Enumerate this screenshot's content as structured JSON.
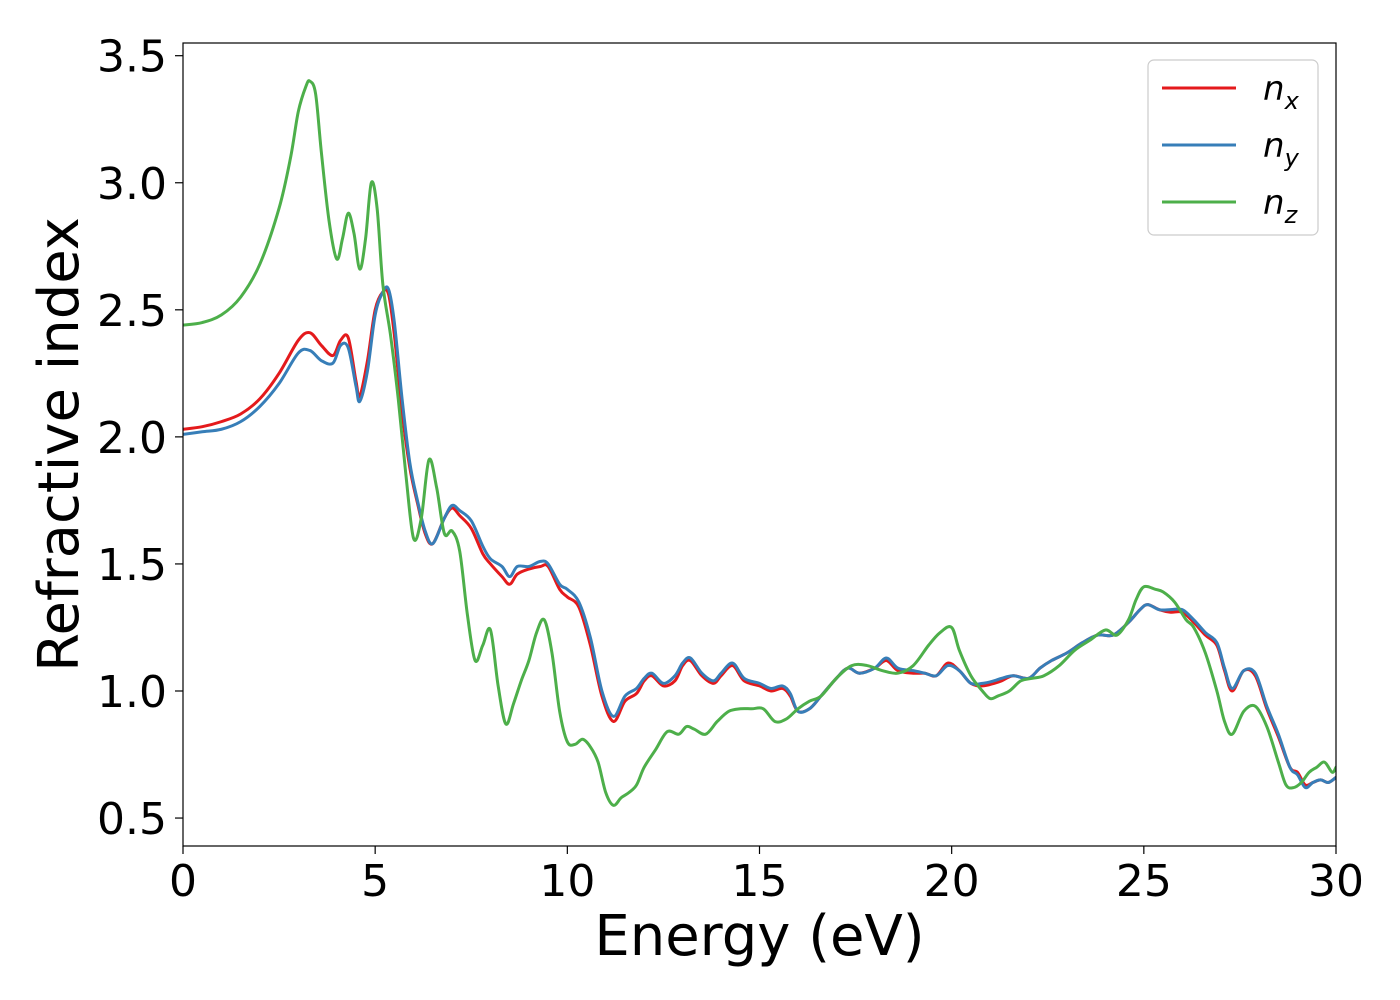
{
  "chart_data": {
    "type": "line",
    "title": "",
    "xlabel": "Energy (eV)",
    "ylabel": "Refractive index",
    "xlim": [
      0,
      30
    ],
    "ylim": [
      0.39,
      3.55
    ],
    "xticks": [
      0,
      5,
      10,
      15,
      20,
      25,
      30
    ],
    "xtick_labels": [
      "0",
      "5",
      "10",
      "15",
      "20",
      "25",
      "30"
    ],
    "yticks": [
      0.5,
      1.0,
      1.5,
      2.0,
      2.5,
      3.0,
      3.5
    ],
    "ytick_labels": [
      "0.5",
      "1.0",
      "1.5",
      "2.0",
      "2.5",
      "3.0",
      "3.5"
    ],
    "grid": false,
    "legend_position": "top-right",
    "series": [
      {
        "name": "n_x",
        "label_base": "n",
        "label_sub": "x",
        "color": "#e41a1c",
        "x": [
          0,
          0.5,
          1,
          1.5,
          2,
          2.5,
          3,
          3.3,
          3.6,
          3.9,
          4.1,
          4.3,
          4.5,
          4.6,
          4.8,
          5.0,
          5.2,
          5.35,
          5.5,
          5.7,
          5.9,
          6.1,
          6.3,
          6.5,
          6.8,
          7.0,
          7.2,
          7.5,
          7.8,
          8.0,
          8.3,
          8.5,
          8.7,
          9.0,
          9.3,
          9.5,
          9.8,
          10.0,
          10.3,
          10.6,
          10.9,
          11.2,
          11.5,
          11.8,
          12.0,
          12.2,
          12.5,
          12.8,
          13.0,
          13.2,
          13.5,
          13.8,
          14.0,
          14.3,
          14.6,
          15.0,
          15.3,
          15.6,
          15.8,
          16.0,
          16.3,
          16.6,
          17.0,
          17.3,
          17.6,
          18.0,
          18.3,
          18.6,
          19.0,
          19.3,
          19.6,
          19.9,
          20.2,
          20.5,
          20.8,
          21.1,
          21.3,
          21.6,
          22.0,
          22.3,
          22.6,
          23.0,
          23.4,
          23.8,
          24.2,
          24.6,
          24.9,
          25.1,
          25.4,
          25.7,
          26.0,
          26.3,
          26.6,
          26.9,
          27.1,
          27.3,
          27.6,
          27.9,
          28.2,
          28.5,
          28.8,
          29.0,
          29.2,
          29.4,
          29.6,
          29.8,
          30.0
        ],
        "y": [
          2.03,
          2.04,
          2.06,
          2.09,
          2.15,
          2.25,
          2.38,
          2.41,
          2.36,
          2.32,
          2.38,
          2.39,
          2.22,
          2.16,
          2.3,
          2.5,
          2.57,
          2.56,
          2.4,
          2.1,
          1.88,
          1.74,
          1.62,
          1.58,
          1.68,
          1.72,
          1.69,
          1.64,
          1.54,
          1.5,
          1.45,
          1.42,
          1.46,
          1.48,
          1.49,
          1.49,
          1.4,
          1.37,
          1.33,
          1.18,
          0.98,
          0.88,
          0.96,
          0.99,
          1.04,
          1.06,
          1.02,
          1.04,
          1.1,
          1.12,
          1.06,
          1.03,
          1.06,
          1.1,
          1.04,
          1.02,
          1.0,
          1.01,
          0.98,
          0.92,
          0.93,
          0.98,
          1.05,
          1.09,
          1.07,
          1.09,
          1.12,
          1.08,
          1.07,
          1.07,
          1.06,
          1.11,
          1.08,
          1.03,
          1.02,
          1.03,
          1.04,
          1.06,
          1.05,
          1.09,
          1.12,
          1.15,
          1.19,
          1.22,
          1.22,
          1.27,
          1.32,
          1.34,
          1.32,
          1.31,
          1.31,
          1.27,
          1.22,
          1.18,
          1.08,
          1.0,
          1.08,
          1.06,
          0.93,
          0.82,
          0.7,
          0.68,
          0.63,
          0.64,
          0.65,
          0.64,
          0.66
        ]
      },
      {
        "name": "n_y",
        "label_base": "n",
        "label_sub": "y",
        "color": "#377eb8",
        "x": [
          0,
          0.5,
          1,
          1.5,
          2,
          2.5,
          3,
          3.3,
          3.6,
          3.9,
          4.1,
          4.3,
          4.5,
          4.6,
          4.8,
          5.0,
          5.2,
          5.35,
          5.5,
          5.7,
          5.9,
          6.1,
          6.3,
          6.5,
          6.8,
          7.0,
          7.2,
          7.5,
          7.8,
          8.0,
          8.3,
          8.5,
          8.7,
          9.0,
          9.3,
          9.5,
          9.8,
          10.0,
          10.3,
          10.6,
          10.9,
          11.2,
          11.5,
          11.8,
          12.0,
          12.2,
          12.5,
          12.8,
          13.0,
          13.2,
          13.5,
          13.8,
          14.0,
          14.3,
          14.6,
          15.0,
          15.3,
          15.6,
          15.8,
          16.0,
          16.3,
          16.6,
          17.0,
          17.3,
          17.6,
          18.0,
          18.3,
          18.6,
          19.0,
          19.3,
          19.6,
          19.9,
          20.2,
          20.5,
          20.8,
          21.1,
          21.3,
          21.6,
          22.0,
          22.3,
          22.6,
          23.0,
          23.4,
          23.8,
          24.2,
          24.6,
          24.9,
          25.1,
          25.4,
          25.7,
          26.0,
          26.3,
          26.6,
          26.9,
          27.1,
          27.3,
          27.6,
          27.9,
          28.2,
          28.5,
          28.8,
          29.0,
          29.2,
          29.4,
          29.6,
          29.8,
          30.0
        ],
        "y": [
          2.01,
          2.02,
          2.03,
          2.06,
          2.12,
          2.21,
          2.33,
          2.34,
          2.3,
          2.29,
          2.36,
          2.35,
          2.2,
          2.14,
          2.26,
          2.48,
          2.57,
          2.58,
          2.45,
          2.15,
          1.9,
          1.75,
          1.63,
          1.58,
          1.68,
          1.73,
          1.71,
          1.67,
          1.57,
          1.52,
          1.49,
          1.45,
          1.49,
          1.49,
          1.51,
          1.5,
          1.42,
          1.4,
          1.35,
          1.21,
          1.0,
          0.9,
          0.98,
          1.01,
          1.05,
          1.07,
          1.03,
          1.06,
          1.11,
          1.13,
          1.07,
          1.04,
          1.07,
          1.11,
          1.05,
          1.03,
          1.01,
          1.02,
          0.99,
          0.92,
          0.93,
          0.98,
          1.05,
          1.09,
          1.07,
          1.09,
          1.13,
          1.09,
          1.08,
          1.07,
          1.06,
          1.1,
          1.08,
          1.03,
          1.03,
          1.04,
          1.05,
          1.06,
          1.05,
          1.09,
          1.12,
          1.15,
          1.19,
          1.22,
          1.22,
          1.27,
          1.32,
          1.34,
          1.32,
          1.32,
          1.32,
          1.28,
          1.23,
          1.19,
          1.09,
          1.01,
          1.08,
          1.07,
          0.94,
          0.83,
          0.7,
          0.67,
          0.62,
          0.64,
          0.65,
          0.64,
          0.66
        ]
      },
      {
        "name": "n_z",
        "label_base": "n",
        "label_sub": "z",
        "color": "#4daf4a",
        "x": [
          0,
          0.5,
          1,
          1.5,
          2,
          2.5,
          2.8,
          3.0,
          3.2,
          3.3,
          3.45,
          3.6,
          3.8,
          4.0,
          4.15,
          4.3,
          4.45,
          4.6,
          4.75,
          4.9,
          5.05,
          5.2,
          5.4,
          5.6,
          5.8,
          6.0,
          6.2,
          6.4,
          6.6,
          6.8,
          7.0,
          7.2,
          7.4,
          7.6,
          7.8,
          8.0,
          8.2,
          8.4,
          8.6,
          8.8,
          9.0,
          9.2,
          9.4,
          9.6,
          9.8,
          10.0,
          10.2,
          10.4,
          10.6,
          10.8,
          11.0,
          11.2,
          11.4,
          11.6,
          11.8,
          12.0,
          12.3,
          12.6,
          12.9,
          13.1,
          13.3,
          13.6,
          13.9,
          14.2,
          14.5,
          14.8,
          15.1,
          15.4,
          15.7,
          16.0,
          16.3,
          16.6,
          17.0,
          17.4,
          17.8,
          18.2,
          18.6,
          19.0,
          19.4,
          19.7,
          20.0,
          20.2,
          20.5,
          20.8,
          21.0,
          21.2,
          21.5,
          21.8,
          22.1,
          22.4,
          22.8,
          23.2,
          23.6,
          24.0,
          24.3,
          24.6,
          24.8,
          25.0,
          25.3,
          25.5,
          25.8,
          26.1,
          26.3,
          26.6,
          26.9,
          27.1,
          27.3,
          27.6,
          27.9,
          28.2,
          28.5,
          28.7,
          28.9,
          29.1,
          29.3,
          29.5,
          29.7,
          29.9,
          30.0
        ],
        "y": [
          2.44,
          2.45,
          2.48,
          2.55,
          2.68,
          2.9,
          3.1,
          3.28,
          3.38,
          3.4,
          3.35,
          3.12,
          2.85,
          2.7,
          2.78,
          2.88,
          2.8,
          2.66,
          2.78,
          3.0,
          2.9,
          2.6,
          2.4,
          2.15,
          1.85,
          1.6,
          1.68,
          1.91,
          1.8,
          1.62,
          1.63,
          1.55,
          1.3,
          1.12,
          1.18,
          1.24,
          1.02,
          0.87,
          0.95,
          1.04,
          1.12,
          1.23,
          1.28,
          1.15,
          0.92,
          0.8,
          0.79,
          0.81,
          0.78,
          0.72,
          0.6,
          0.55,
          0.58,
          0.6,
          0.63,
          0.7,
          0.77,
          0.84,
          0.83,
          0.86,
          0.85,
          0.83,
          0.88,
          0.92,
          0.93,
          0.93,
          0.93,
          0.88,
          0.89,
          0.93,
          0.96,
          0.98,
          1.05,
          1.1,
          1.1,
          1.08,
          1.07,
          1.1,
          1.18,
          1.23,
          1.25,
          1.16,
          1.06,
          1.0,
          0.97,
          0.98,
          1.0,
          1.04,
          1.05,
          1.06,
          1.1,
          1.16,
          1.2,
          1.24,
          1.22,
          1.28,
          1.36,
          1.41,
          1.4,
          1.39,
          1.35,
          1.28,
          1.25,
          1.15,
          1.0,
          0.88,
          0.83,
          0.92,
          0.94,
          0.86,
          0.72,
          0.63,
          0.62,
          0.64,
          0.68,
          0.7,
          0.72,
          0.68,
          0.7
        ]
      }
    ]
  }
}
